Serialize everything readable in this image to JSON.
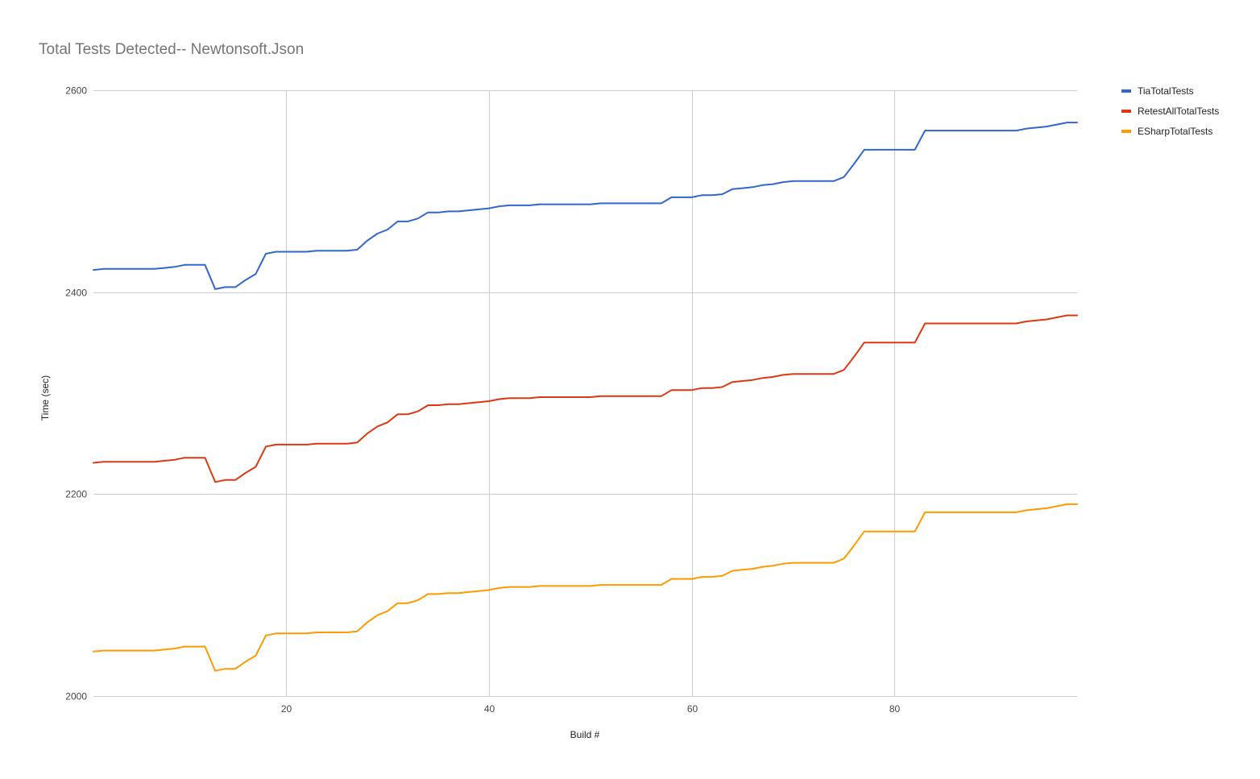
{
  "chart_data": {
    "type": "line",
    "title": "Total Tests Detected-- Newtonsoft.Json",
    "xlabel": "Build #",
    "ylabel": "Time (sec)",
    "xlim": [
      1,
      98
    ],
    "ylim": [
      2000,
      2600
    ],
    "x_ticks": [
      20,
      40,
      60,
      80
    ],
    "y_ticks": [
      2000,
      2200,
      2400,
      2600
    ],
    "x_tick_labels": [
      "20",
      "40",
      "60",
      "80"
    ],
    "y_tick_labels": [
      "2000",
      "2200",
      "2400",
      "2600"
    ],
    "grid": true,
    "legend_position": "right",
    "x": [
      1,
      2,
      3,
      4,
      5,
      6,
      7,
      8,
      9,
      10,
      11,
      12,
      13,
      14,
      15,
      16,
      17,
      18,
      19,
      20,
      21,
      22,
      23,
      24,
      25,
      26,
      27,
      28,
      29,
      30,
      31,
      32,
      33,
      34,
      35,
      36,
      37,
      38,
      39,
      40,
      41,
      42,
      43,
      44,
      45,
      46,
      47,
      48,
      49,
      50,
      51,
      52,
      53,
      54,
      55,
      56,
      57,
      58,
      59,
      60,
      61,
      62,
      63,
      64,
      65,
      66,
      67,
      68,
      69,
      70,
      71,
      72,
      73,
      74,
      75,
      76,
      77,
      78,
      79,
      80,
      81,
      82,
      83,
      84,
      85,
      86,
      87,
      88,
      89,
      90,
      91,
      92,
      93,
      94,
      95,
      96,
      97,
      98
    ],
    "series": [
      {
        "name": "TiaTotalTests",
        "color": "#3366cc",
        "values": [
          2422,
          2423,
          2423,
          2423,
          2423,
          2423,
          2423,
          2424,
          2425,
          2427,
          2427,
          2427,
          2403,
          2405,
          2405,
          2412,
          2418,
          2438,
          2440,
          2440,
          2440,
          2440,
          2441,
          2441,
          2441,
          2441,
          2442,
          2451,
          2458,
          2462,
          2470,
          2470,
          2473,
          2479,
          2479,
          2480,
          2480,
          2481,
          2482,
          2483,
          2485,
          2486,
          2486,
          2486,
          2487,
          2487,
          2487,
          2487,
          2487,
          2487,
          2488,
          2488,
          2488,
          2488,
          2488,
          2488,
          2488,
          2494,
          2494,
          2494,
          2496,
          2496,
          2497,
          2502,
          2503,
          2504,
          2506,
          2507,
          2509,
          2510,
          2510,
          2510,
          2510,
          2510,
          2514,
          2527,
          2541,
          2541,
          2541,
          2541,
          2541,
          2541,
          2560,
          2560,
          2560,
          2560,
          2560,
          2560,
          2560,
          2560,
          2560,
          2560,
          2562,
          2563,
          2564,
          2566,
          2568,
          2568
        ]
      },
      {
        "name": "RetestAllTotalTests",
        "color": "#dc3912",
        "values": [
          2231,
          2232,
          2232,
          2232,
          2232,
          2232,
          2232,
          2233,
          2234,
          2236,
          2236,
          2236,
          2212,
          2214,
          2214,
          2221,
          2227,
          2247,
          2249,
          2249,
          2249,
          2249,
          2250,
          2250,
          2250,
          2250,
          2251,
          2260,
          2267,
          2271,
          2279,
          2279,
          2282,
          2288,
          2288,
          2289,
          2289,
          2290,
          2291,
          2292,
          2294,
          2295,
          2295,
          2295,
          2296,
          2296,
          2296,
          2296,
          2296,
          2296,
          2297,
          2297,
          2297,
          2297,
          2297,
          2297,
          2297,
          2303,
          2303,
          2303,
          2305,
          2305,
          2306,
          2311,
          2312,
          2313,
          2315,
          2316,
          2318,
          2319,
          2319,
          2319,
          2319,
          2319,
          2323,
          2336,
          2350,
          2350,
          2350,
          2350,
          2350,
          2350,
          2369,
          2369,
          2369,
          2369,
          2369,
          2369,
          2369,
          2369,
          2369,
          2369,
          2371,
          2372,
          2373,
          2375,
          2377,
          2377
        ]
      },
      {
        "name": "ESharpTotalTests",
        "color": "#ff9900",
        "values": [
          2044,
          2045,
          2045,
          2045,
          2045,
          2045,
          2045,
          2046,
          2047,
          2049,
          2049,
          2049,
          2025,
          2027,
          2027,
          2034,
          2040,
          2060,
          2062,
          2062,
          2062,
          2062,
          2063,
          2063,
          2063,
          2063,
          2064,
          2073,
          2080,
          2084,
          2092,
          2092,
          2095,
          2101,
          2101,
          2102,
          2102,
          2103,
          2104,
          2105,
          2107,
          2108,
          2108,
          2108,
          2109,
          2109,
          2109,
          2109,
          2109,
          2109,
          2110,
          2110,
          2110,
          2110,
          2110,
          2110,
          2110,
          2116,
          2116,
          2116,
          2118,
          2118,
          2119,
          2124,
          2125,
          2126,
          2128,
          2129,
          2131,
          2132,
          2132,
          2132,
          2132,
          2132,
          2136,
          2149,
          2163,
          2163,
          2163,
          2163,
          2163,
          2163,
          2182,
          2182,
          2182,
          2182,
          2182,
          2182,
          2182,
          2182,
          2182,
          2182,
          2184,
          2185,
          2186,
          2188,
          2190,
          2190
        ]
      }
    ]
  }
}
